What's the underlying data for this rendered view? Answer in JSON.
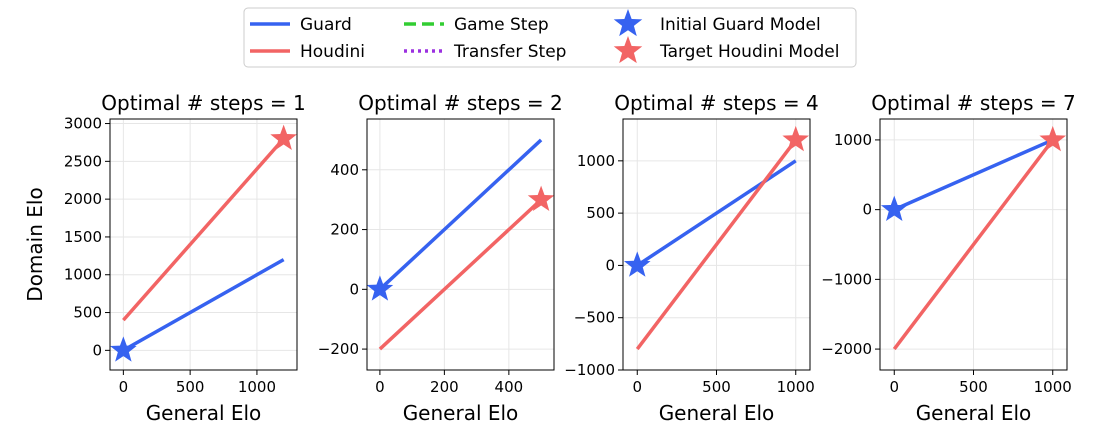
{
  "legend": {
    "entries": [
      {
        "label": "Guard",
        "kind": "line",
        "color": "#3662f0",
        "dash": "solid"
      },
      {
        "label": "Houdini",
        "kind": "line",
        "color": "#f26464",
        "dash": "solid"
      },
      {
        "label": "Game Step",
        "kind": "line",
        "color": "#32cd32",
        "dash": "dashed"
      },
      {
        "label": "Transfer Step",
        "kind": "line",
        "color": "#9b30e0",
        "dash": "dotted"
      },
      {
        "label": "Initial Guard Model",
        "kind": "star",
        "color": "#3662f0"
      },
      {
        "label": "Target Houdini Model",
        "kind": "star",
        "color": "#f26464"
      }
    ],
    "placement": "top-center",
    "columns": 3
  },
  "chart_data": [
    {
      "type": "line",
      "title": "Optimal # steps = 1",
      "xlabel": "General Elo",
      "ylabel": "Domain Elo",
      "xlim": [
        -100,
        1300
      ],
      "ylim": [
        -260,
        3060
      ],
      "xticks": [
        0,
        500,
        1000
      ],
      "yticks": [
        0,
        500,
        1000,
        1500,
        2000,
        2500,
        3000
      ],
      "grid": true,
      "series": [
        {
          "name": "Guard",
          "color": "#3662f0",
          "x": [
            0,
            1200
          ],
          "y": [
            0,
            1200
          ]
        },
        {
          "name": "Houdini",
          "color": "#f26464",
          "x": [
            0,
            1200
          ],
          "y": [
            400,
            2800
          ]
        }
      ],
      "markers": [
        {
          "name": "Initial Guard Model",
          "x": 0,
          "y": 0,
          "color": "#3662f0"
        },
        {
          "name": "Target Houdini Model",
          "x": 1200,
          "y": 2800,
          "color": "#f26464"
        }
      ]
    },
    {
      "type": "line",
      "title": "Optimal # steps = 2",
      "xlabel": "General Elo",
      "ylabel": "",
      "xlim": [
        -40,
        540
      ],
      "ylim": [
        -270,
        570
      ],
      "xticks": [
        0,
        200,
        400
      ],
      "yticks": [
        -200,
        0,
        200,
        400
      ],
      "grid": true,
      "series": [
        {
          "name": "Guard",
          "color": "#3662f0",
          "x": [
            0,
            500
          ],
          "y": [
            0,
            500
          ]
        },
        {
          "name": "Houdini",
          "color": "#f26464",
          "x": [
            0,
            500
          ],
          "y": [
            -200,
            300
          ]
        }
      ],
      "markers": [
        {
          "name": "Initial Guard Model",
          "x": 0,
          "y": 0,
          "color": "#3662f0"
        },
        {
          "name": "Target Houdini Model",
          "x": 500,
          "y": 300,
          "color": "#f26464"
        }
      ]
    },
    {
      "type": "line",
      "title": "Optimal # steps = 4",
      "xlabel": "General Elo",
      "ylabel": "",
      "xlim": [
        -90,
        1090
      ],
      "ylim": [
        -1000,
        1400
      ],
      "xticks": [
        0,
        500,
        1000
      ],
      "yticks": [
        -1000,
        -500,
        0,
        500,
        1000
      ],
      "grid": true,
      "series": [
        {
          "name": "Guard",
          "color": "#3662f0",
          "x": [
            0,
            1000
          ],
          "y": [
            0,
            1000
          ]
        },
        {
          "name": "Houdini",
          "color": "#f26464",
          "x": [
            0,
            1000
          ],
          "y": [
            -800,
            1200
          ]
        }
      ],
      "markers": [
        {
          "name": "Initial Guard Model",
          "x": 0,
          "y": 0,
          "color": "#3662f0"
        },
        {
          "name": "Target Houdini Model",
          "x": 1000,
          "y": 1200,
          "color": "#f26464"
        }
      ]
    },
    {
      "type": "line",
      "title": "Optimal # steps = 7",
      "xlabel": "General Elo",
      "ylabel": "",
      "xlim": [
        -90,
        1090
      ],
      "ylim": [
        -2300,
        1300
      ],
      "xticks": [
        0,
        500,
        1000
      ],
      "yticks": [
        -2000,
        -1000,
        0,
        1000
      ],
      "grid": true,
      "series": [
        {
          "name": "Guard",
          "color": "#3662f0",
          "x": [
            0,
            1000
          ],
          "y": [
            0,
            1000
          ]
        },
        {
          "name": "Houdini",
          "color": "#f26464",
          "x": [
            0,
            1000
          ],
          "y": [
            -2000,
            1000
          ]
        }
      ],
      "markers": [
        {
          "name": "Initial Guard Model",
          "x": 0,
          "y": 0,
          "color": "#3662f0"
        },
        {
          "name": "Target Houdini Model",
          "x": 1000,
          "y": 1000,
          "color": "#f26464"
        }
      ]
    }
  ]
}
